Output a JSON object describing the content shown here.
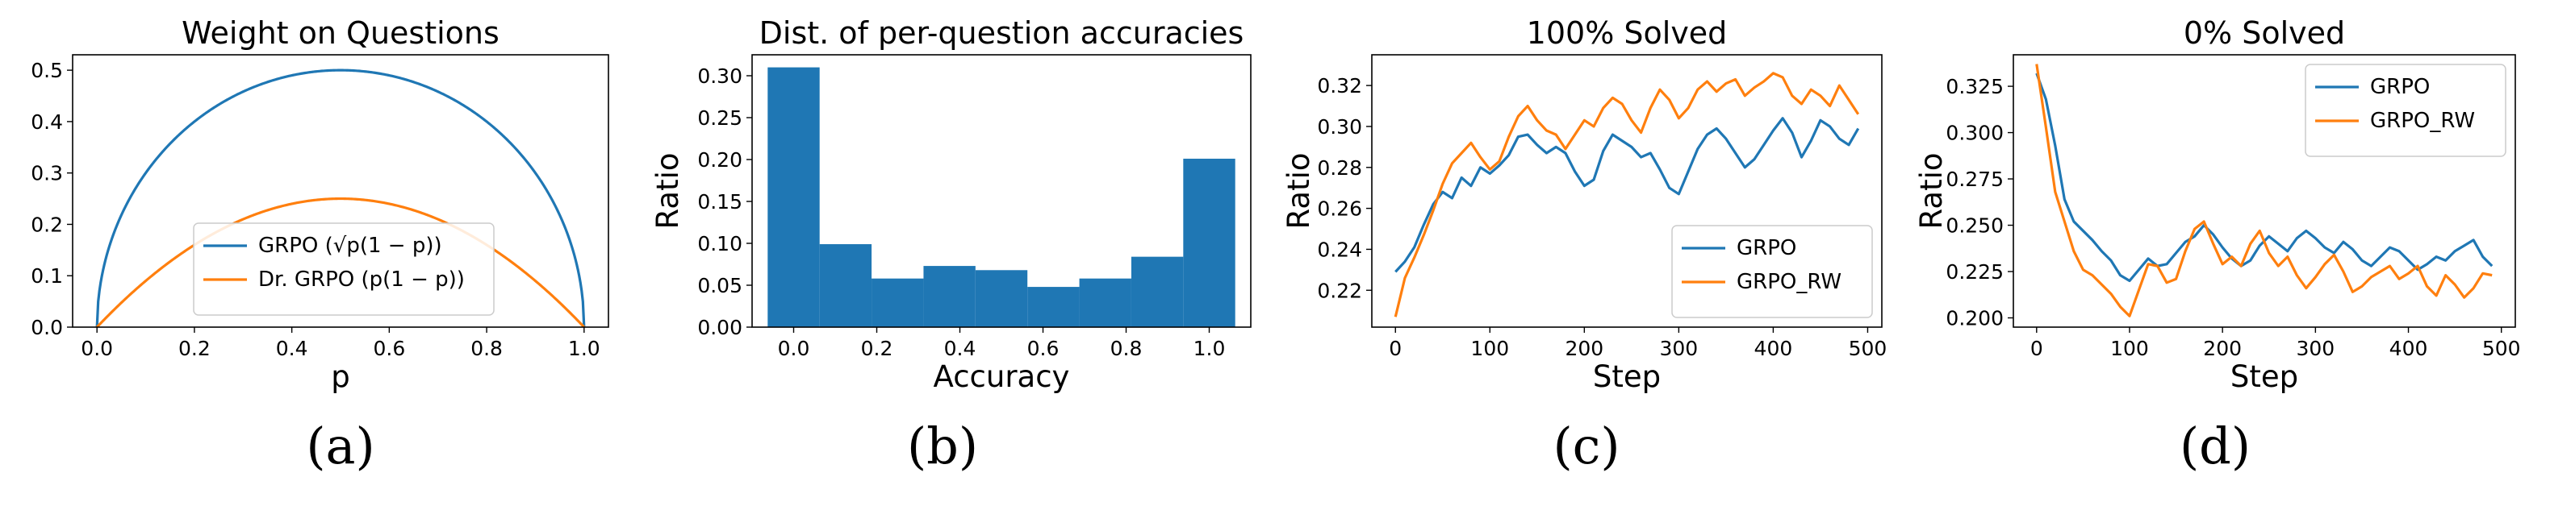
{
  "colors": {
    "blue": "#1f77b4",
    "orange": "#ff7f0e"
  },
  "chart_data": [
    {
      "type": "line",
      "title": "Weight on Questions",
      "xlabel": "p",
      "ylabel": "",
      "xlim": [
        -0.05,
        1.05
      ],
      "ylim": [
        0.0,
        0.53
      ],
      "xticks": [
        "0.0",
        "0.2",
        "0.4",
        "0.6",
        "0.8",
        "1.0"
      ],
      "yticks": [
        "0.0",
        "0.1",
        "0.2",
        "0.3",
        "0.4",
        "0.5"
      ],
      "legend_position": "lower-center",
      "caption": "(a)",
      "series": [
        {
          "name": "GRPO (√p(1 − p))",
          "color": "#1f77b4",
          "function": "sqrt(p*(1-p))"
        },
        {
          "name": "Dr. GRPO (p(1 − p))",
          "color": "#ff7f0e",
          "function": "p*(1-p)"
        }
      ]
    },
    {
      "type": "bar",
      "title": "Dist. of per-question accuracies",
      "xlabel": "Accuracy",
      "ylabel": "Ratio",
      "xlim": [
        -0.1,
        1.1
      ],
      "ylim": [
        0.0,
        0.325
      ],
      "xticks": [
        "0.0",
        "0.2",
        "0.4",
        "0.6",
        "0.8",
        "1.0"
      ],
      "yticks": [
        "0.00",
        "0.05",
        "0.10",
        "0.15",
        "0.20",
        "0.25",
        "0.30"
      ],
      "caption": "(b)",
      "color": "#1f77b4",
      "bin_edges": [
        -0.0625,
        0.0625,
        0.1875,
        0.3125,
        0.4375,
        0.5625,
        0.6875,
        0.8125,
        0.9375,
        1.0625
      ],
      "values": [
        0.31,
        0.099,
        0.058,
        0.073,
        0.068,
        0.048,
        0.058,
        0.084,
        0.201
      ]
    },
    {
      "type": "line",
      "title": "100% Solved",
      "xlabel": "Step",
      "ylabel": "Ratio",
      "xlim": [
        -25,
        515
      ],
      "ylim": [
        0.202,
        0.335
      ],
      "xticks": [
        "0",
        "100",
        "200",
        "300",
        "400",
        "500"
      ],
      "yticks": [
        "0.22",
        "0.24",
        "0.26",
        "0.28",
        "0.30",
        "0.32"
      ],
      "legend_position": "lower-right",
      "caption": "(c)",
      "x": [
        0,
        10,
        20,
        30,
        40,
        50,
        60,
        70,
        80,
        90,
        100,
        110,
        120,
        130,
        140,
        150,
        160,
        170,
        180,
        190,
        200,
        210,
        220,
        230,
        240,
        250,
        260,
        270,
        280,
        290,
        300,
        310,
        320,
        330,
        340,
        350,
        360,
        370,
        380,
        390,
        400,
        410,
        420,
        430,
        440,
        450,
        460,
        470,
        480,
        490
      ],
      "series": [
        {
          "name": "GRPO",
          "color": "#1f77b4",
          "values": [
            0.229,
            0.234,
            0.241,
            0.252,
            0.262,
            0.268,
            0.265,
            0.275,
            0.271,
            0.28,
            0.277,
            0.281,
            0.286,
            0.295,
            0.296,
            0.291,
            0.287,
            0.29,
            0.287,
            0.278,
            0.271,
            0.274,
            0.288,
            0.296,
            0.293,
            0.29,
            0.285,
            0.287,
            0.279,
            0.27,
            0.267,
            0.278,
            0.289,
            0.296,
            0.299,
            0.294,
            0.287,
            0.28,
            0.284,
            0.291,
            0.298,
            0.304,
            0.297,
            0.285,
            0.293,
            0.303,
            0.3,
            0.294,
            0.291,
            0.299
          ]
        },
        {
          "name": "GRPO_RW",
          "color": "#ff7f0e",
          "values": [
            0.207,
            0.226,
            0.236,
            0.247,
            0.259,
            0.272,
            0.282,
            0.287,
            0.292,
            0.285,
            0.279,
            0.283,
            0.295,
            0.305,
            0.31,
            0.303,
            0.298,
            0.296,
            0.289,
            0.296,
            0.303,
            0.3,
            0.309,
            0.314,
            0.311,
            0.303,
            0.297,
            0.309,
            0.318,
            0.313,
            0.304,
            0.309,
            0.318,
            0.322,
            0.317,
            0.321,
            0.323,
            0.315,
            0.319,
            0.322,
            0.326,
            0.324,
            0.315,
            0.311,
            0.318,
            0.315,
            0.31,
            0.32,
            0.313,
            0.306
          ]
        }
      ]
    },
    {
      "type": "line",
      "title": "0% Solved",
      "xlabel": "Step",
      "ylabel": "Ratio",
      "xlim": [
        -25,
        515
      ],
      "ylim": [
        0.195,
        0.342
      ],
      "xticks": [
        "0",
        "100",
        "200",
        "300",
        "400",
        "500"
      ],
      "yticks": [
        "0.200",
        "0.225",
        "0.250",
        "0.275",
        "0.300",
        "0.325"
      ],
      "legend_position": "upper-right",
      "caption": "(d)",
      "x": [
        0,
        10,
        20,
        30,
        40,
        50,
        60,
        70,
        80,
        90,
        100,
        110,
        120,
        130,
        140,
        150,
        160,
        170,
        180,
        190,
        200,
        210,
        220,
        230,
        240,
        250,
        260,
        270,
        280,
        290,
        300,
        310,
        320,
        330,
        340,
        350,
        360,
        370,
        380,
        390,
        400,
        410,
        420,
        430,
        440,
        450,
        460,
        470,
        480,
        490
      ],
      "series": [
        {
          "name": "GRPO",
          "color": "#1f77b4",
          "values": [
            0.332,
            0.318,
            0.293,
            0.264,
            0.252,
            0.247,
            0.242,
            0.236,
            0.231,
            0.223,
            0.22,
            0.226,
            0.232,
            0.228,
            0.229,
            0.235,
            0.241,
            0.244,
            0.25,
            0.245,
            0.238,
            0.232,
            0.228,
            0.231,
            0.239,
            0.244,
            0.24,
            0.236,
            0.243,
            0.247,
            0.243,
            0.238,
            0.235,
            0.241,
            0.237,
            0.231,
            0.228,
            0.233,
            0.238,
            0.236,
            0.231,
            0.226,
            0.229,
            0.233,
            0.231,
            0.236,
            0.239,
            0.242,
            0.233,
            0.228
          ]
        },
        {
          "name": "GRPO_RW",
          "color": "#ff7f0e",
          "values": [
            0.337,
            0.303,
            0.268,
            0.252,
            0.236,
            0.226,
            0.223,
            0.218,
            0.213,
            0.206,
            0.201,
            0.215,
            0.229,
            0.228,
            0.219,
            0.221,
            0.236,
            0.248,
            0.252,
            0.24,
            0.229,
            0.233,
            0.228,
            0.24,
            0.247,
            0.235,
            0.228,
            0.233,
            0.223,
            0.216,
            0.222,
            0.229,
            0.234,
            0.225,
            0.214,
            0.217,
            0.222,
            0.225,
            0.228,
            0.221,
            0.224,
            0.228,
            0.217,
            0.212,
            0.223,
            0.218,
            0.211,
            0.216,
            0.224,
            0.223
          ]
        }
      ]
    }
  ]
}
